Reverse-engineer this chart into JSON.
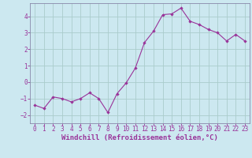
{
  "x": [
    0,
    1,
    2,
    3,
    4,
    5,
    6,
    7,
    8,
    9,
    10,
    11,
    12,
    13,
    14,
    15,
    16,
    17,
    18,
    19,
    20,
    21,
    22,
    23
  ],
  "y": [
    -1.4,
    -1.6,
    -0.9,
    -1.0,
    -1.2,
    -1.0,
    -0.65,
    -1.0,
    -1.85,
    -0.7,
    -0.05,
    0.85,
    2.4,
    3.1,
    4.1,
    4.15,
    4.5,
    3.7,
    3.5,
    3.2,
    3.0,
    2.5,
    2.9,
    2.5
  ],
  "line_color": "#993399",
  "marker": "D",
  "marker_size": 2.2,
  "bg_color": "#cce8f0",
  "grid_color": "#aacccc",
  "xlabel": "Windchill (Refroidissement éolien,°C)",
  "xlabel_color": "#993399",
  "tick_color": "#993399",
  "spine_color": "#8888aa",
  "ylim": [
    -2.5,
    4.8
  ],
  "xlim": [
    -0.5,
    23.5
  ],
  "yticks": [
    -2,
    -1,
    0,
    1,
    2,
    3,
    4
  ],
  "xticks": [
    0,
    1,
    2,
    3,
    4,
    5,
    6,
    7,
    8,
    9,
    10,
    11,
    12,
    13,
    14,
    15,
    16,
    17,
    18,
    19,
    20,
    21,
    22,
    23
  ],
  "tick_fontsize": 5.5,
  "xlabel_fontsize": 6.5
}
